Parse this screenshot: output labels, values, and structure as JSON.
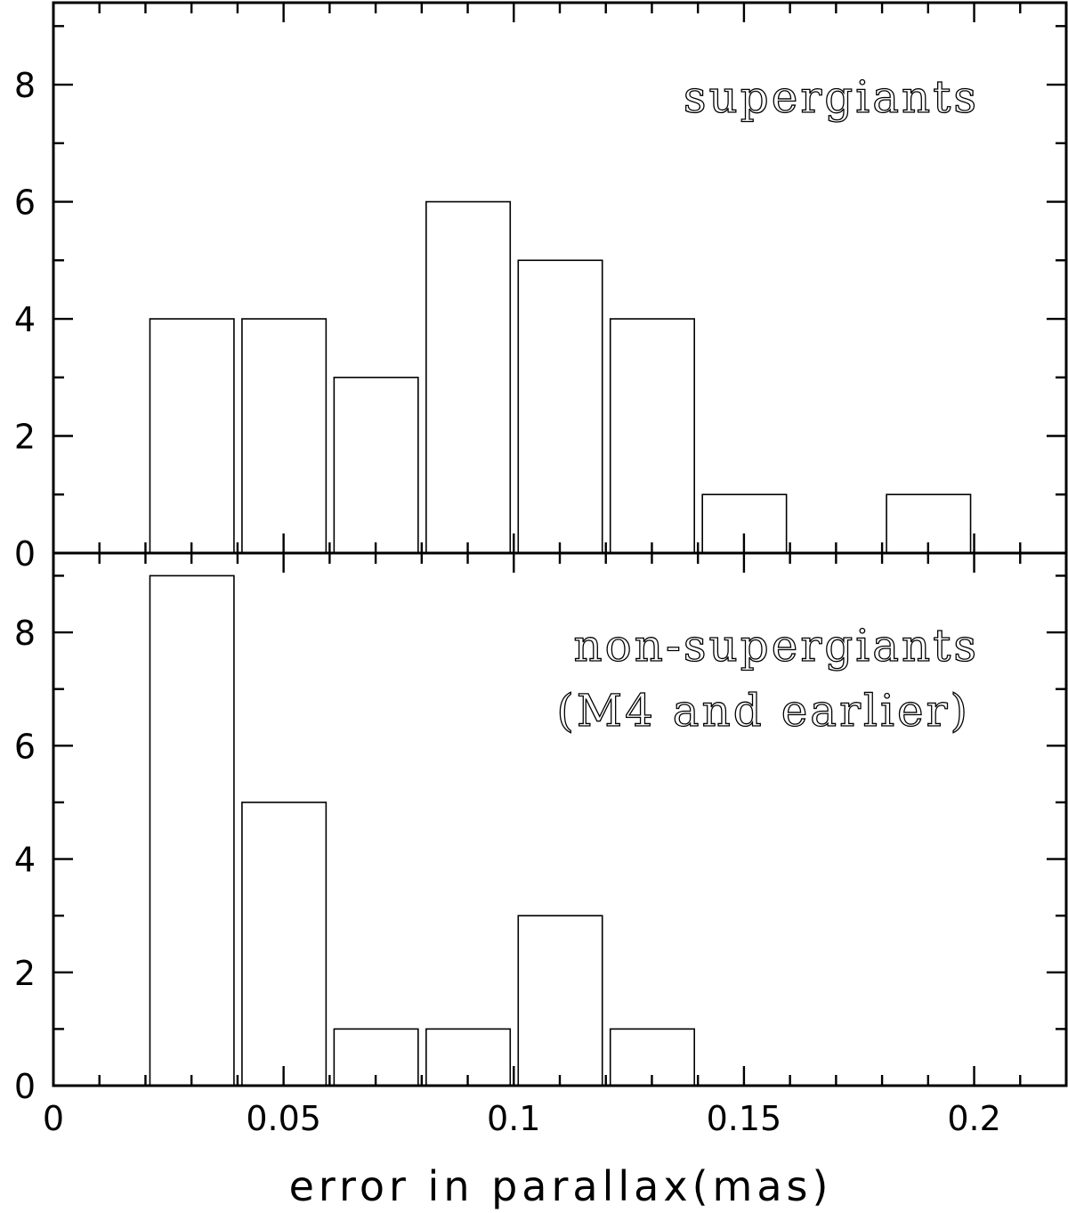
{
  "chart_data": [
    {
      "type": "bar",
      "panel": "top",
      "annotation": [
        "supergiants"
      ],
      "bin_edges": [
        [
          0.02,
          0.04
        ],
        [
          0.04,
          0.06
        ],
        [
          0.06,
          0.08
        ],
        [
          0.08,
          0.1
        ],
        [
          0.1,
          0.12
        ],
        [
          0.12,
          0.14
        ],
        [
          0.14,
          0.16
        ],
        [
          0.18,
          0.2
        ]
      ],
      "values": [
        4,
        4,
        3,
        6,
        5,
        4,
        1,
        1
      ],
      "xlim": [
        0,
        0.22
      ],
      "ylim": [
        0,
        9.4
      ],
      "y_ticks": [
        "0",
        "2",
        "4",
        "6",
        "8"
      ]
    },
    {
      "type": "bar",
      "panel": "bottom",
      "annotation": [
        "non-supergiants",
        "(M4 and earlier)"
      ],
      "bin_edges": [
        [
          0.02,
          0.04
        ],
        [
          0.04,
          0.06
        ],
        [
          0.06,
          0.08
        ],
        [
          0.08,
          0.1
        ],
        [
          0.1,
          0.12
        ],
        [
          0.12,
          0.14
        ]
      ],
      "values": [
        9,
        5,
        1,
        1,
        3,
        1
      ],
      "xlim": [
        0,
        0.22
      ],
      "ylim": [
        0,
        9.4
      ],
      "y_ticks": [
        "0",
        "2",
        "4",
        "6",
        "8"
      ],
      "x_ticks": [
        "0",
        "0.05",
        "0.1",
        "0.15",
        "0.2"
      ]
    }
  ],
  "xlabel": "error in parallax(mas)"
}
